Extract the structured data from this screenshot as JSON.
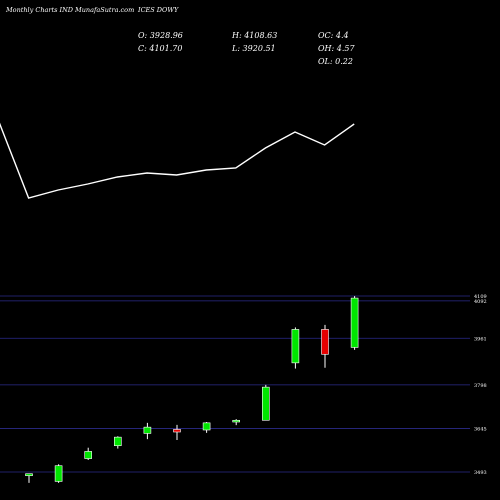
{
  "header": {
    "title": "Monthly Charts IND MunafaSutra.com",
    "symbol": "ICES DOWY",
    "open": "O: 3928.96",
    "close": "C: 4101.70",
    "high": "H: 4108.63",
    "low": "L: 3920.51",
    "oc": "OC: 4.4",
    "oh": "OH: 4.57",
    "ol": "OL: 0.22"
  },
  "chart_data": [
    {
      "type": "line",
      "x": [
        1,
        2,
        3,
        4,
        5,
        6,
        7,
        8,
        9,
        10,
        11,
        12,
        13
      ],
      "values": [
        122,
        198,
        190,
        184,
        177,
        173,
        175,
        170,
        168,
        148,
        132,
        145,
        124
      ],
      "y_range": [
        100,
        220
      ],
      "ylim_direction": "inverted"
    },
    {
      "type": "candlestick",
      "x": [
        1,
        2,
        3,
        4,
        5,
        6,
        7,
        8,
        9,
        10,
        11,
        12
      ],
      "candles": [
        {
          "open": 3480,
          "high": 3487,
          "low": 3455,
          "close": 3487,
          "dir": "up"
        },
        {
          "open": 3460,
          "high": 3520,
          "low": 3455,
          "close": 3515,
          "dir": "up"
        },
        {
          "open": 3540,
          "high": 3578,
          "low": 3535,
          "close": 3565,
          "dir": "up"
        },
        {
          "open": 3585,
          "high": 3618,
          "low": 3575,
          "close": 3615,
          "dir": "up"
        },
        {
          "open": 3628,
          "high": 3665,
          "low": 3608,
          "close": 3650,
          "dir": "up"
        },
        {
          "open": 3642,
          "high": 3658,
          "low": 3605,
          "close": 3633,
          "dir": "down"
        },
        {
          "open": 3640,
          "high": 3668,
          "low": 3630,
          "close": 3665,
          "dir": "up"
        },
        {
          "open": 3668,
          "high": 3678,
          "low": 3657,
          "close": 3674,
          "dir": "up"
        },
        {
          "open": 3674,
          "high": 3798,
          "low": 3674,
          "close": 3790,
          "dir": "up"
        },
        {
          "open": 3875,
          "high": 3999,
          "low": 3855,
          "close": 3992,
          "dir": "up"
        },
        {
          "open": 3992,
          "high": 4008,
          "low": 3858,
          "close": 3905,
          "dir": "down"
        },
        {
          "open": 3928.96,
          "high": 4108.63,
          "low": 3920.51,
          "close": 4101.7,
          "dir": "up"
        }
      ],
      "ytick_labels": [
        "4109",
        "4092",
        "3961",
        "3798",
        "3645",
        "3493"
      ],
      "ytick_values": [
        4109,
        4092,
        3961,
        3798,
        3645,
        3493
      ],
      "ylim": [
        3440,
        4130
      ],
      "colors": {
        "up": "#00e600",
        "down": "#e60000",
        "wick": "#ffffff",
        "grid": "#2b2b8c"
      }
    }
  ]
}
